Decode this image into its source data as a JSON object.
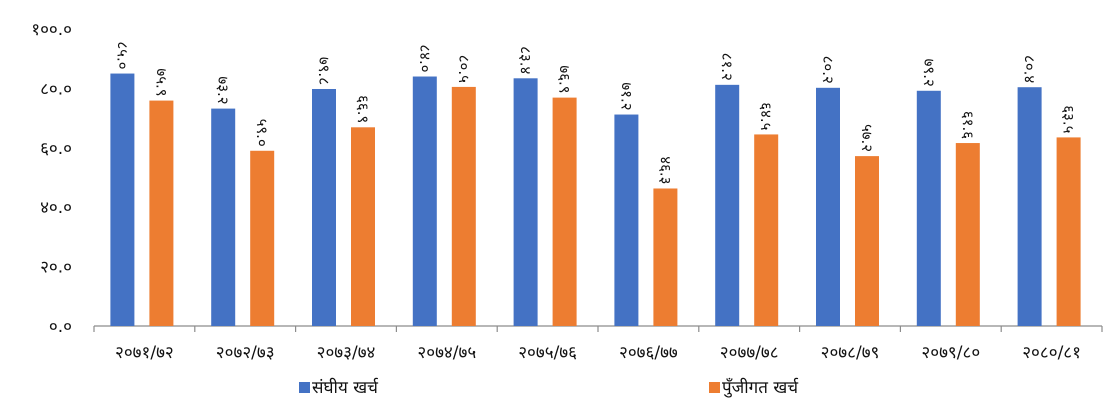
{
  "chart_data": {
    "type": "bar",
    "title": "",
    "xlabel": "",
    "ylabel": "",
    "ylim": [
      0,
      100
    ],
    "yticks": [
      0,
      20,
      40,
      60,
      80,
      100
    ],
    "ytick_labels": [
      "०.०",
      "२०.०",
      "४०.०",
      "६०.०",
      "८०.०",
      "१००.०"
    ],
    "categories": [
      "२०७१/७२",
      "२०७२/७३",
      "२०७३/७४",
      "२०७४/७५",
      "२०७५/७६",
      "२०७६/७७",
      "२०७७/७८",
      "२०७८/७९",
      "२०७९/८०",
      "२०८०/८१"
    ],
    "series": [
      {
        "name": "संघीय खर्च",
        "color": "#4472C4",
        "values": [
          85.0,
          73.2,
          79.8,
          84.0,
          83.4,
          71.2,
          81.2,
          80.2,
          79.2,
          80.4
        ],
        "labels": [
          "८५.०",
          "७३.२",
          "७९.८",
          "८४.०",
          "८३.४",
          "७१.२",
          "८१.२",
          "८०.२",
          "७९.२",
          "८०.४"
        ]
      },
      {
        "name": "पुँजीगत खर्च",
        "color": "#ED7D31",
        "values": [
          75.9,
          59.0,
          66.9,
          80.5,
          76.9,
          46.3,
          64.5,
          57.2,
          61.6,
          63.5
        ],
        "labels": [
          "७५.९",
          "५९.०",
          "६६.९",
          "८०.५",
          "७६.९",
          "४६.३",
          "६४.५",
          "५७.२",
          "६१.६",
          "६३.५"
        ]
      }
    ],
    "grid": false,
    "legend_position": "bottom"
  }
}
